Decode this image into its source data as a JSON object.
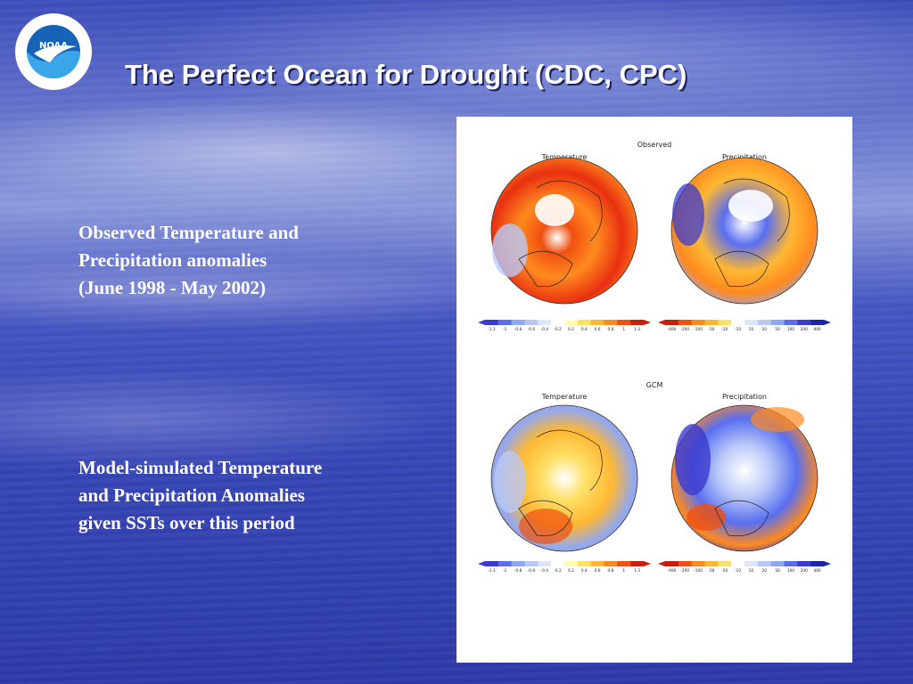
{
  "slide": {
    "title": "The Perfect Ocean for Drought (CDC, CPC)",
    "logo_text": "NOAA",
    "observed_caption": [
      "Observed Temperature and",
      "Precipitation anomalies",
      "(June 1998 - May 2002)"
    ],
    "model_caption": [
      "Model-simulated Temperature",
      "and Precipitation Anomalies",
      "given SSTs over this period"
    ]
  },
  "figure": {
    "panels": [
      {
        "heading": "Observed",
        "left_label": "Temperature",
        "right_label": "Precipitation"
      },
      {
        "heading": "GCM",
        "left_label": "Temperature",
        "right_label": "Precipitation"
      }
    ],
    "temp_scale": [
      "-1.3",
      "-1",
      "-0.8",
      "-0.6",
      "-0.4",
      "-0.2",
      "0.2",
      "0.4",
      "0.6",
      "0.8",
      "1",
      "1.3"
    ],
    "precip_scale": [
      "-400",
      "-200",
      "-100",
      "-50",
      "-20",
      "-10",
      "10",
      "20",
      "50",
      "100",
      "200",
      "400"
    ],
    "temp_colors": [
      "#3b3bd0",
      "#5a6ff0",
      "#8fa8f5",
      "#b9c8f8",
      "#dfe6fb",
      "#ffffff",
      "#ffffb0",
      "#ffe066",
      "#ffb733",
      "#ff8a1f",
      "#f05010",
      "#c81e0a"
    ],
    "precip_colors": [
      "#c81e0a",
      "#f05010",
      "#ff8a1f",
      "#ffb733",
      "#ffe066",
      "#ffffff",
      "#dfe6fb",
      "#b9c8f8",
      "#8fa8f5",
      "#5a6ff0",
      "#3b3bd0",
      "#1a26a8"
    ]
  }
}
